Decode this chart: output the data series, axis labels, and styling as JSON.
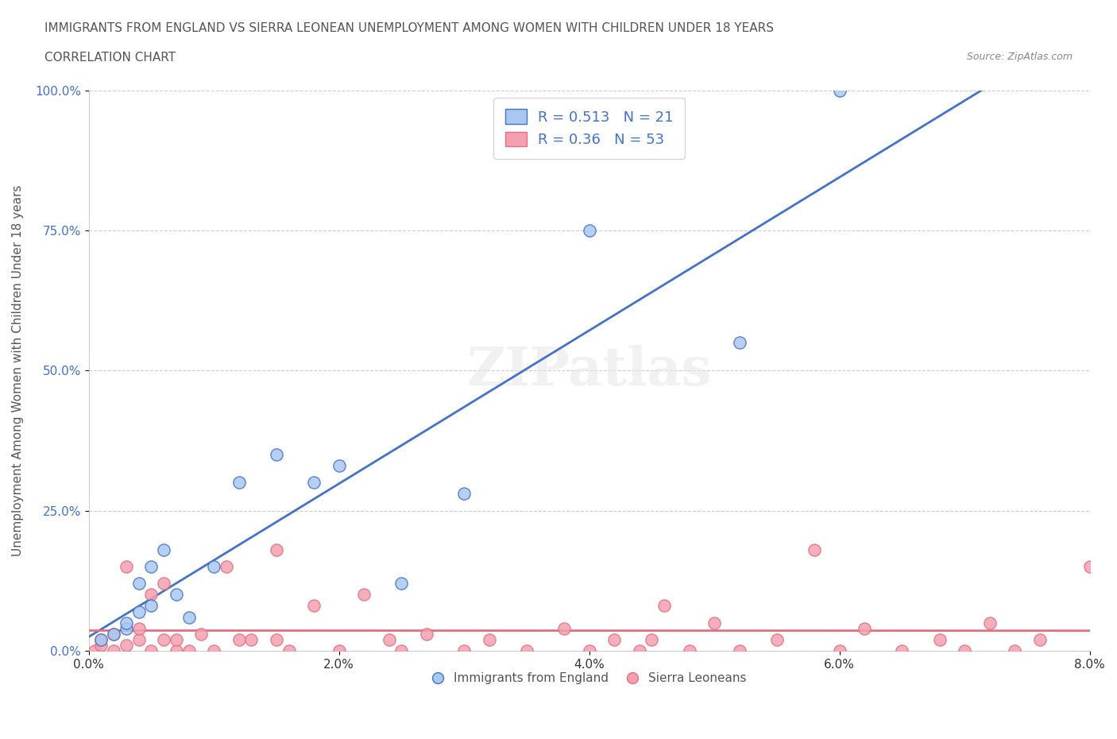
{
  "title": "IMMIGRANTS FROM ENGLAND VS SIERRA LEONEAN UNEMPLOYMENT AMONG WOMEN WITH CHILDREN UNDER 18 YEARS",
  "subtitle": "CORRELATION CHART",
  "source": "Source: ZipAtlas.com",
  "xlabel": "",
  "ylabel": "Unemployment Among Women with Children Under 18 years",
  "xlim": [
    0.0,
    0.08
  ],
  "ylim": [
    0.0,
    1.0
  ],
  "xticks": [
    0.0,
    0.02,
    0.04,
    0.06,
    0.08
  ],
  "xtick_labels": [
    "0.0%",
    "2.0%",
    "4.0%",
    "6.0%",
    "8.0%"
  ],
  "yticks": [
    0.0,
    0.25,
    0.5,
    0.75,
    1.0
  ],
  "ytick_labels": [
    "0.0%",
    "25.0%",
    "50.0%",
    "75.0%",
    "100.0%"
  ],
  "blue_color": "#a8c8f0",
  "blue_line_color": "#4472c4",
  "pink_color": "#f4a0b0",
  "pink_line_color": "#e07080",
  "blue_R": 0.513,
  "blue_N": 21,
  "pink_R": 0.36,
  "pink_N": 53,
  "watermark": "ZIPatlas",
  "blue_x": [
    0.001,
    0.002,
    0.003,
    0.003,
    0.004,
    0.004,
    0.005,
    0.005,
    0.006,
    0.007,
    0.008,
    0.01,
    0.012,
    0.015,
    0.018,
    0.02,
    0.025,
    0.03,
    0.04,
    0.052,
    0.06
  ],
  "blue_y": [
    0.02,
    0.03,
    0.04,
    0.05,
    0.07,
    0.12,
    0.08,
    0.15,
    0.18,
    0.1,
    0.06,
    0.15,
    0.3,
    0.35,
    0.3,
    0.33,
    0.12,
    0.28,
    0.75,
    0.55,
    1.0
  ],
  "pink_x": [
    0.0005,
    0.001,
    0.001,
    0.002,
    0.002,
    0.003,
    0.003,
    0.004,
    0.004,
    0.005,
    0.005,
    0.006,
    0.006,
    0.007,
    0.007,
    0.008,
    0.009,
    0.01,
    0.011,
    0.012,
    0.013,
    0.015,
    0.015,
    0.016,
    0.018,
    0.02,
    0.022,
    0.024,
    0.025,
    0.027,
    0.03,
    0.032,
    0.035,
    0.038,
    0.04,
    0.042,
    0.044,
    0.045,
    0.046,
    0.048,
    0.05,
    0.052,
    0.055,
    0.058,
    0.06,
    0.062,
    0.065,
    0.068,
    0.07,
    0.072,
    0.074,
    0.076,
    0.08
  ],
  "pink_y": [
    0.0,
    0.01,
    0.02,
    0.0,
    0.03,
    0.01,
    0.15,
    0.02,
    0.04,
    0.0,
    0.1,
    0.02,
    0.12,
    0.0,
    0.02,
    0.0,
    0.03,
    0.0,
    0.15,
    0.02,
    0.02,
    0.18,
    0.02,
    0.0,
    0.08,
    0.0,
    0.1,
    0.02,
    0.0,
    0.03,
    0.0,
    0.02,
    0.0,
    0.04,
    0.0,
    0.02,
    0.0,
    0.02,
    0.08,
    0.0,
    0.05,
    0.0,
    0.02,
    0.18,
    0.0,
    0.04,
    0.0,
    0.02,
    0.0,
    0.05,
    0.0,
    0.02,
    0.15
  ]
}
